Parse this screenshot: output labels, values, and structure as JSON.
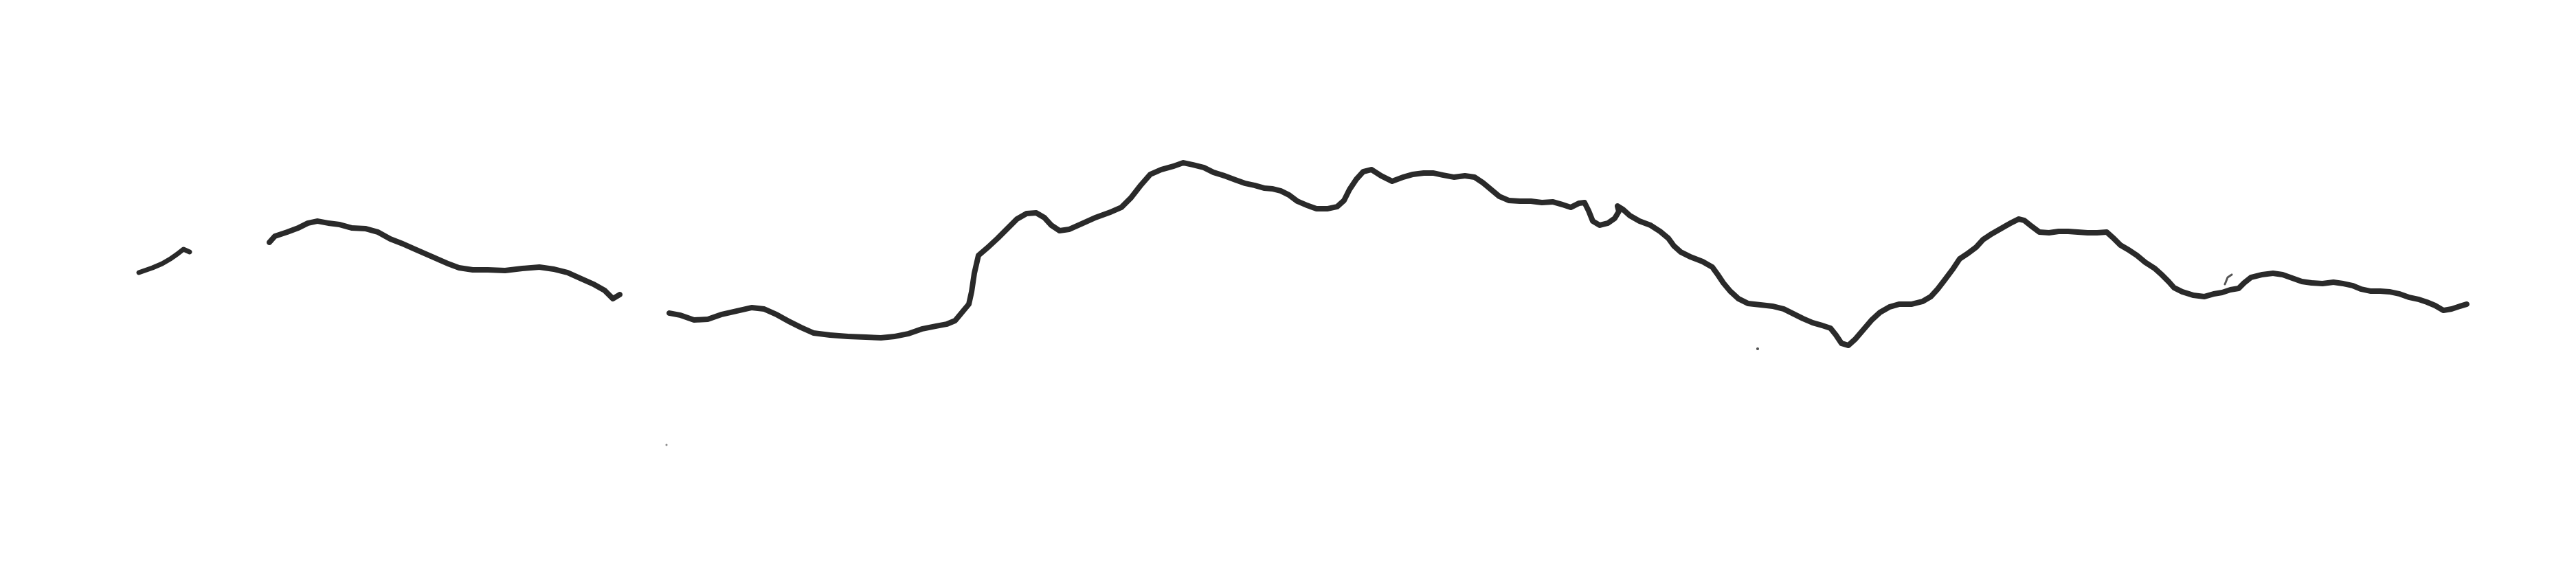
{
  "drawing": {
    "subject": "hand-drawn-line",
    "background_color": "#ffffff",
    "ink_color": "#2a2a2a",
    "segment_count": 4,
    "speck_count": 3
  }
}
